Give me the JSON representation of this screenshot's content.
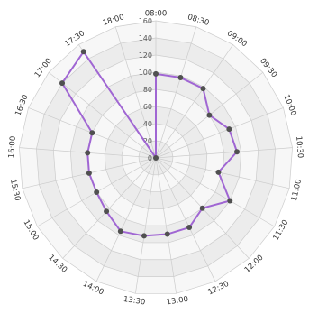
{
  "chart_data": {
    "type": "radar",
    "categories": [
      "08:00",
      "08:30",
      "09:00",
      "09:30",
      "10:00",
      "10:30",
      "11:00",
      "11:30",
      "12:00",
      "12:30",
      "13:00",
      "13:30",
      "14:00",
      "14:30",
      "15:00",
      "15:30",
      "16:00",
      "16:30",
      "17:00",
      "17:30",
      "18:00"
    ],
    "series": [
      {
        "values": [
          98,
          98,
          98,
          80,
          92,
          95,
          75,
          100,
          80,
          90,
          90,
          92,
          95,
          85,
          80,
          80,
          80,
          80,
          140,
          150,
          0
        ],
        "color": "#a066d3"
      }
    ],
    "r_ticks": [
      0,
      20,
      40,
      60,
      80,
      100,
      120,
      140,
      160
    ],
    "rlim": [
      0,
      160
    ],
    "grid": true,
    "legend": "none",
    "colors": {
      "line": "#a066d3",
      "marker": "#505050",
      "grid": "#cccccc",
      "band_light": "#f7f7f7",
      "band_dark": "#ececec"
    }
  }
}
